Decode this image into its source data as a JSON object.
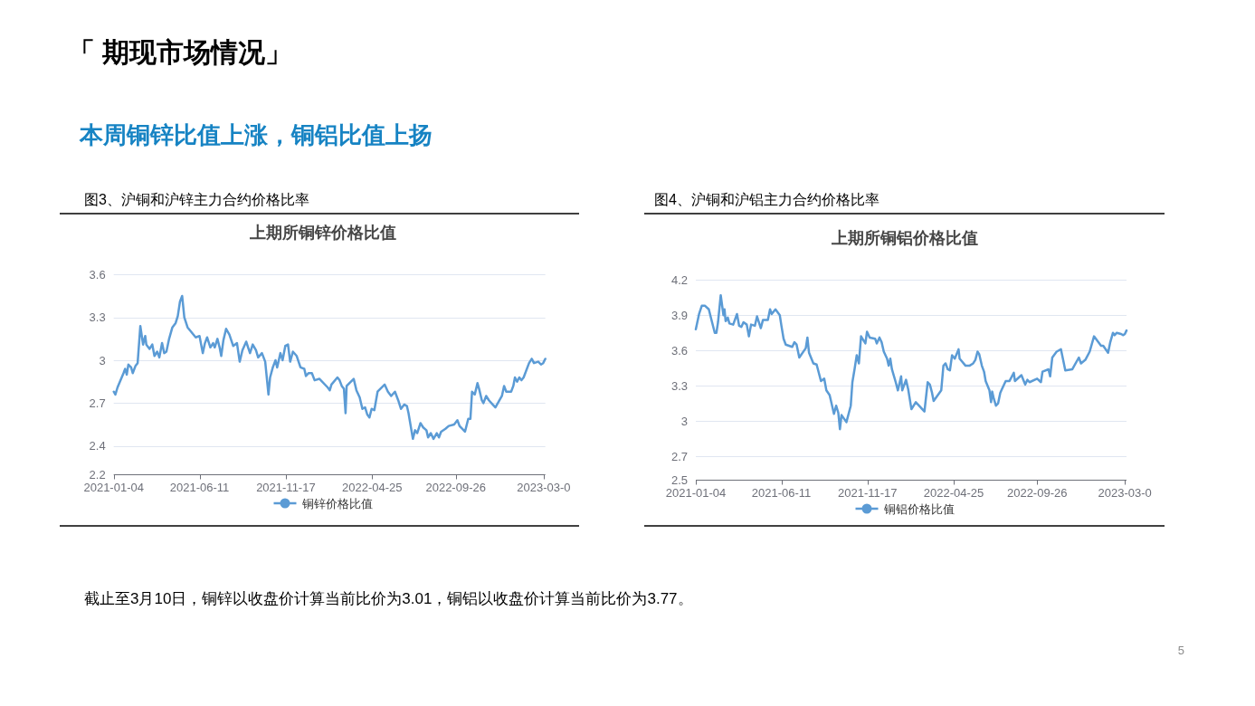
{
  "chart_data": [
    {
      "type": "other",
      "title": "「 期现市场情况」",
      "subtitle": "本周铜锌比值上涨，铜铝比值上扬",
      "annotations": [
        "截止至3月10日，铜锌以收盘价计算当前比价为3.01，铜铝以收盘价计算当前比价为3.77。",
        "5"
      ]
    },
    {
      "type": "line",
      "title": "图3、沪铜和沪锌主力合约价格比率",
      "subtitle": "上期所铜锌价格比值",
      "x": [
        "2021-01-04",
        "2021-01-07",
        "2021-01-11",
        "2021-01-22",
        "2021-01-25",
        "2021-01-28",
        "2021-01-31",
        "2021-02-05",
        "2021-02-08",
        "2021-02-13",
        "2021-02-17",
        "2021-02-22",
        "2021-02-27",
        "2021-03-03",
        "2021-03-05",
        "2021-03-11",
        "2021-03-16",
        "2021-03-20",
        "2021-03-25",
        "2021-03-29",
        "2021-04-03",
        "2021-04-07",
        "2021-04-11",
        "2021-04-16",
        "2021-04-22",
        "2021-04-28",
        "2021-05-02",
        "2021-05-06",
        "2021-05-10",
        "2021-05-14",
        "2021-05-20",
        "2021-06-04",
        "2021-06-11",
        "2021-06-17",
        "2021-06-21",
        "2021-06-25",
        "2021-07-01",
        "2021-07-06",
        "2021-07-09",
        "2021-07-14",
        "2021-07-18",
        "2021-07-21",
        "2021-07-25",
        "2021-07-30",
        "2021-08-05",
        "2021-08-12",
        "2021-08-19",
        "2021-08-24",
        "2021-08-29",
        "2021-09-05",
        "2021-09-12",
        "2021-09-17",
        "2021-09-23",
        "2021-09-27",
        "2021-10-04",
        "2021-10-10",
        "2021-10-16",
        "2021-10-19",
        "2021-10-24",
        "2021-10-29",
        "2021-11-01",
        "2021-11-07",
        "2021-11-11",
        "2021-11-16",
        "2021-11-21",
        "2021-11-25",
        "2021-11-30",
        "2021-12-07",
        "2021-12-14",
        "2021-12-21",
        "2021-12-24",
        "2021-12-29",
        "2022-01-04",
        "2022-01-09",
        "2022-01-18",
        "2022-02-02",
        "2022-02-06",
        "2022-02-09",
        "2022-02-20",
        "2022-02-24",
        "2022-02-28",
        "2022-03-04",
        "2022-03-07",
        "2022-03-09",
        "2022-03-14",
        "2022-03-22",
        "2022-03-27",
        "2022-04-02",
        "2022-04-07",
        "2022-04-12",
        "2022-04-16",
        "2022-04-20",
        "2022-04-24",
        "2022-04-29",
        "2022-05-05",
        "2022-05-18",
        "2022-05-24",
        "2022-05-30",
        "2022-06-06",
        "2022-06-12",
        "2022-06-17",
        "2022-06-23",
        "2022-06-28",
        "2022-07-01",
        "2022-07-09",
        "2022-07-13",
        "2022-07-17",
        "2022-07-23",
        "2022-07-28",
        "2022-08-03",
        "2022-08-06",
        "2022-08-11",
        "2022-08-16",
        "2022-08-22",
        "2022-08-26",
        "2022-08-30",
        "2022-09-07",
        "2022-09-13",
        "2022-09-23",
        "2022-09-29",
        "2022-10-03",
        "2022-10-13",
        "2022-10-19",
        "2022-10-23",
        "2022-10-26",
        "2022-10-31",
        "2022-11-05",
        "2022-11-08",
        "2022-11-13",
        "2022-11-16",
        "2022-11-21",
        "2022-11-26",
        "2022-12-03",
        "2022-12-08",
        "2022-12-20",
        "2022-12-24",
        "2022-12-28",
        "2023-01-06",
        "2023-01-10",
        "2023-01-13",
        "2023-01-17",
        "2023-01-21",
        "2023-01-25",
        "2023-01-29",
        "2023-02-08",
        "2023-02-13",
        "2023-02-17",
        "2023-02-25",
        "2023-03-02",
        "2023-03-06",
        "2023-03-10"
      ],
      "series": [
        {
          "name": "铜锌价格比值",
          "color": "#5b9bd5",
          "values": [
            2.78,
            2.76,
            2.81,
            2.91,
            2.94,
            2.9,
            2.97,
            2.95,
            2.91,
            2.96,
            2.98,
            3.24,
            3.11,
            3.17,
            3.11,
            3.08,
            3.11,
            3.03,
            3.06,
            3.02,
            3.12,
            3.05,
            3.06,
            3.15,
            3.23,
            3.26,
            3.31,
            3.41,
            3.45,
            3.3,
            3.23,
            3.16,
            3.17,
            3.05,
            3.12,
            3.16,
            3.09,
            3.12,
            3.09,
            3.15,
            3.09,
            3.03,
            3.14,
            3.22,
            3.18,
            3.1,
            3.12,
            2.99,
            3.07,
            3.13,
            3.05,
            3.11,
            3.07,
            3.02,
            3.05,
            2.99,
            2.76,
            2.88,
            2.95,
            3.0,
            2.95,
            3.05,
            3.0,
            3.1,
            3.11,
            2.99,
            3.06,
            3.03,
            2.95,
            2.94,
            2.89,
            2.91,
            2.91,
            2.86,
            2.87,
            2.81,
            2.79,
            2.83,
            2.88,
            2.86,
            2.82,
            2.8,
            2.63,
            2.82,
            2.84,
            2.87,
            2.79,
            2.74,
            2.66,
            2.67,
            2.62,
            2.6,
            2.66,
            2.65,
            2.78,
            2.83,
            2.78,
            2.75,
            2.78,
            2.72,
            2.66,
            2.69,
            2.68,
            2.63,
            2.45,
            2.51,
            2.49,
            2.56,
            2.53,
            2.51,
            2.46,
            2.49,
            2.45,
            2.49,
            2.46,
            2.5,
            2.52,
            2.54,
            2.55,
            2.58,
            2.54,
            2.5,
            2.59,
            2.59,
            2.78,
            2.76,
            2.84,
            2.8,
            2.72,
            2.7,
            2.75,
            2.72,
            2.69,
            2.67,
            2.75,
            2.82,
            2.78,
            2.78,
            2.82,
            2.88,
            2.85,
            2.88,
            2.86,
            2.88,
            2.98,
            3.01,
            2.98,
            2.99,
            2.97,
            2.98,
            3.01
          ]
        }
      ],
      "xlim": [
        "2021-01-04",
        "2023-03-10"
      ],
      "xticks": [
        "2021-01-04",
        "2021-06-11",
        "2021-11-17",
        "2022-04-25",
        "2022-09-26",
        {
          "value": "2023-03-07",
          "label": "2023-03-0"
        }
      ],
      "ylim": [
        2.2,
        3.6
      ],
      "yticks": [
        2.2,
        2.4,
        2.7,
        3,
        3.3,
        3.6
      ],
      "grid": "y",
      "legend": "bottom",
      "marker": "none"
    },
    {
      "type": "line",
      "title": "图4、沪铜和沪铝主力合约价格比率",
      "subtitle": "上期所铜铝价格比值",
      "x": [
        "2021-01-04",
        "2021-01-10",
        "2021-01-15",
        "2021-01-21",
        "2021-01-28",
        "2021-02-03",
        "2021-02-08",
        "2021-02-11",
        "2021-02-14",
        "2021-02-19",
        "2021-02-24",
        "2021-02-26",
        "2021-02-28",
        "2021-03-04",
        "2021-03-07",
        "2021-03-14",
        "2021-03-21",
        "2021-03-25",
        "2021-03-29",
        "2021-04-02",
        "2021-04-08",
        "2021-04-12",
        "2021-04-16",
        "2021-04-23",
        "2021-04-27",
        "2021-05-04",
        "2021-05-08",
        "2021-05-17",
        "2021-05-21",
        "2021-05-24",
        "2021-05-31",
        "2021-06-08",
        "2021-06-11",
        "2021-06-15",
        "2021-06-19",
        "2021-07-01",
        "2021-07-05",
        "2021-07-09",
        "2021-07-14",
        "2021-07-26",
        "2021-07-29",
        "2021-08-01",
        "2021-08-09",
        "2021-08-15",
        "2021-08-23",
        "2021-08-29",
        "2021-09-02",
        "2021-09-08",
        "2021-09-16",
        "2021-09-20",
        "2021-09-24",
        "2021-09-27",
        "2021-09-30",
        "2021-10-09",
        "2021-10-13",
        "2021-10-17",
        "2021-10-20",
        "2021-10-24",
        "2021-10-28",
        "2021-11-01",
        "2021-11-05",
        "2021-11-13",
        "2021-11-16",
        "2021-11-21",
        "2021-12-01",
        "2021-12-04",
        "2021-12-09",
        "2021-12-13",
        "2021-12-17",
        "2021-12-23",
        "2021-12-26",
        "2021-12-29",
        "2022-01-01",
        "2022-01-08",
        "2022-01-12",
        "2022-01-18",
        "2022-01-20",
        "2022-01-27",
        "2022-01-31",
        "2022-02-06",
        "2022-02-14",
        "2022-02-20",
        "2022-03-02",
        "2022-03-08",
        "2022-03-12",
        "2022-03-16",
        "2022-03-19",
        "2022-04-02",
        "2022-04-06",
        "2022-04-10",
        "2022-04-14",
        "2022-04-18",
        "2022-04-22",
        "2022-04-27",
        "2022-05-04",
        "2022-05-06",
        "2022-05-17",
        "2022-05-24",
        "2022-05-31",
        "2022-06-04",
        "2022-06-08",
        "2022-06-11",
        "2022-06-16",
        "2022-06-20",
        "2022-06-23",
        "2022-06-30",
        "2022-07-03",
        "2022-07-05",
        "2022-07-08",
        "2022-07-12",
        "2022-07-16",
        "2022-07-20",
        "2022-07-23",
        "2022-07-30",
        "2022-08-06",
        "2022-08-14",
        "2022-08-16",
        "2022-08-28",
        "2022-09-04",
        "2022-09-08",
        "2022-09-12",
        "2022-09-26",
        "2022-10-03",
        "2022-10-06",
        "2022-10-17",
        "2022-10-20",
        "2022-10-24",
        "2022-11-01",
        "2022-11-09",
        "2022-11-13",
        "2022-11-17",
        "2022-11-30",
        "2022-12-12",
        "2022-12-16",
        "2022-12-24",
        "2023-01-01",
        "2023-01-09",
        "2023-01-22",
        "2023-01-26",
        "2023-02-04",
        "2023-02-08",
        "2023-02-13",
        "2023-02-16",
        "2023-02-20",
        "2023-02-28",
        "2023-03-04",
        "2023-03-07",
        "2023-03-10"
      ],
      "series": [
        {
          "name": "铜铝价格比值",
          "color": "#5b9bd5",
          "values": [
            3.78,
            3.91,
            3.98,
            3.98,
            3.95,
            3.84,
            3.75,
            3.75,
            3.84,
            4.07,
            3.9,
            3.95,
            3.85,
            3.88,
            3.83,
            3.82,
            3.91,
            3.81,
            3.8,
            3.84,
            3.82,
            3.72,
            3.82,
            3.81,
            3.89,
            3.79,
            3.86,
            3.86,
            3.95,
            3.91,
            3.95,
            3.9,
            3.81,
            3.7,
            3.65,
            3.63,
            3.67,
            3.65,
            3.54,
            3.62,
            3.71,
            3.58,
            3.49,
            3.48,
            3.34,
            3.36,
            3.26,
            3.22,
            3.06,
            3.13,
            3.07,
            2.93,
            3.05,
            2.99,
            3.06,
            3.13,
            3.33,
            3.44,
            3.56,
            3.49,
            3.72,
            3.66,
            3.76,
            3.71,
            3.7,
            3.66,
            3.71,
            3.67,
            3.59,
            3.53,
            3.47,
            3.53,
            3.44,
            3.33,
            3.26,
            3.38,
            3.26,
            3.35,
            3.27,
            3.1,
            3.16,
            3.13,
            3.08,
            3.33,
            3.31,
            3.24,
            3.17,
            3.26,
            3.47,
            3.49,
            3.44,
            3.43,
            3.56,
            3.53,
            3.61,
            3.53,
            3.47,
            3.47,
            3.49,
            3.52,
            3.59,
            3.57,
            3.47,
            3.42,
            3.34,
            3.26,
            3.16,
            3.25,
            3.19,
            3.13,
            3.15,
            3.24,
            3.27,
            3.34,
            3.34,
            3.41,
            3.34,
            3.39,
            3.31,
            3.35,
            3.33,
            3.36,
            3.33,
            3.42,
            3.44,
            3.38,
            3.54,
            3.59,
            3.61,
            3.52,
            3.43,
            3.44,
            3.54,
            3.49,
            3.52,
            3.59,
            3.72,
            3.64,
            3.64,
            3.58,
            3.67,
            3.75,
            3.73,
            3.75,
            3.74,
            3.73,
            3.74,
            3.77
          ]
        }
      ],
      "xlim": [
        "2021-01-04",
        "2023-03-10"
      ],
      "xticks": [
        "2021-01-04",
        "2021-06-11",
        "2021-11-17",
        "2022-04-25",
        "2022-09-26",
        {
          "value": "2023-03-07",
          "label": "2023-03-0"
        }
      ],
      "ylim": [
        2.5,
        4.2
      ],
      "yticks": [
        2.5,
        2.7,
        3,
        3.3,
        3.6,
        3.9,
        4.2
      ],
      "grid": "y",
      "legend": "bottom",
      "marker": "none"
    }
  ]
}
